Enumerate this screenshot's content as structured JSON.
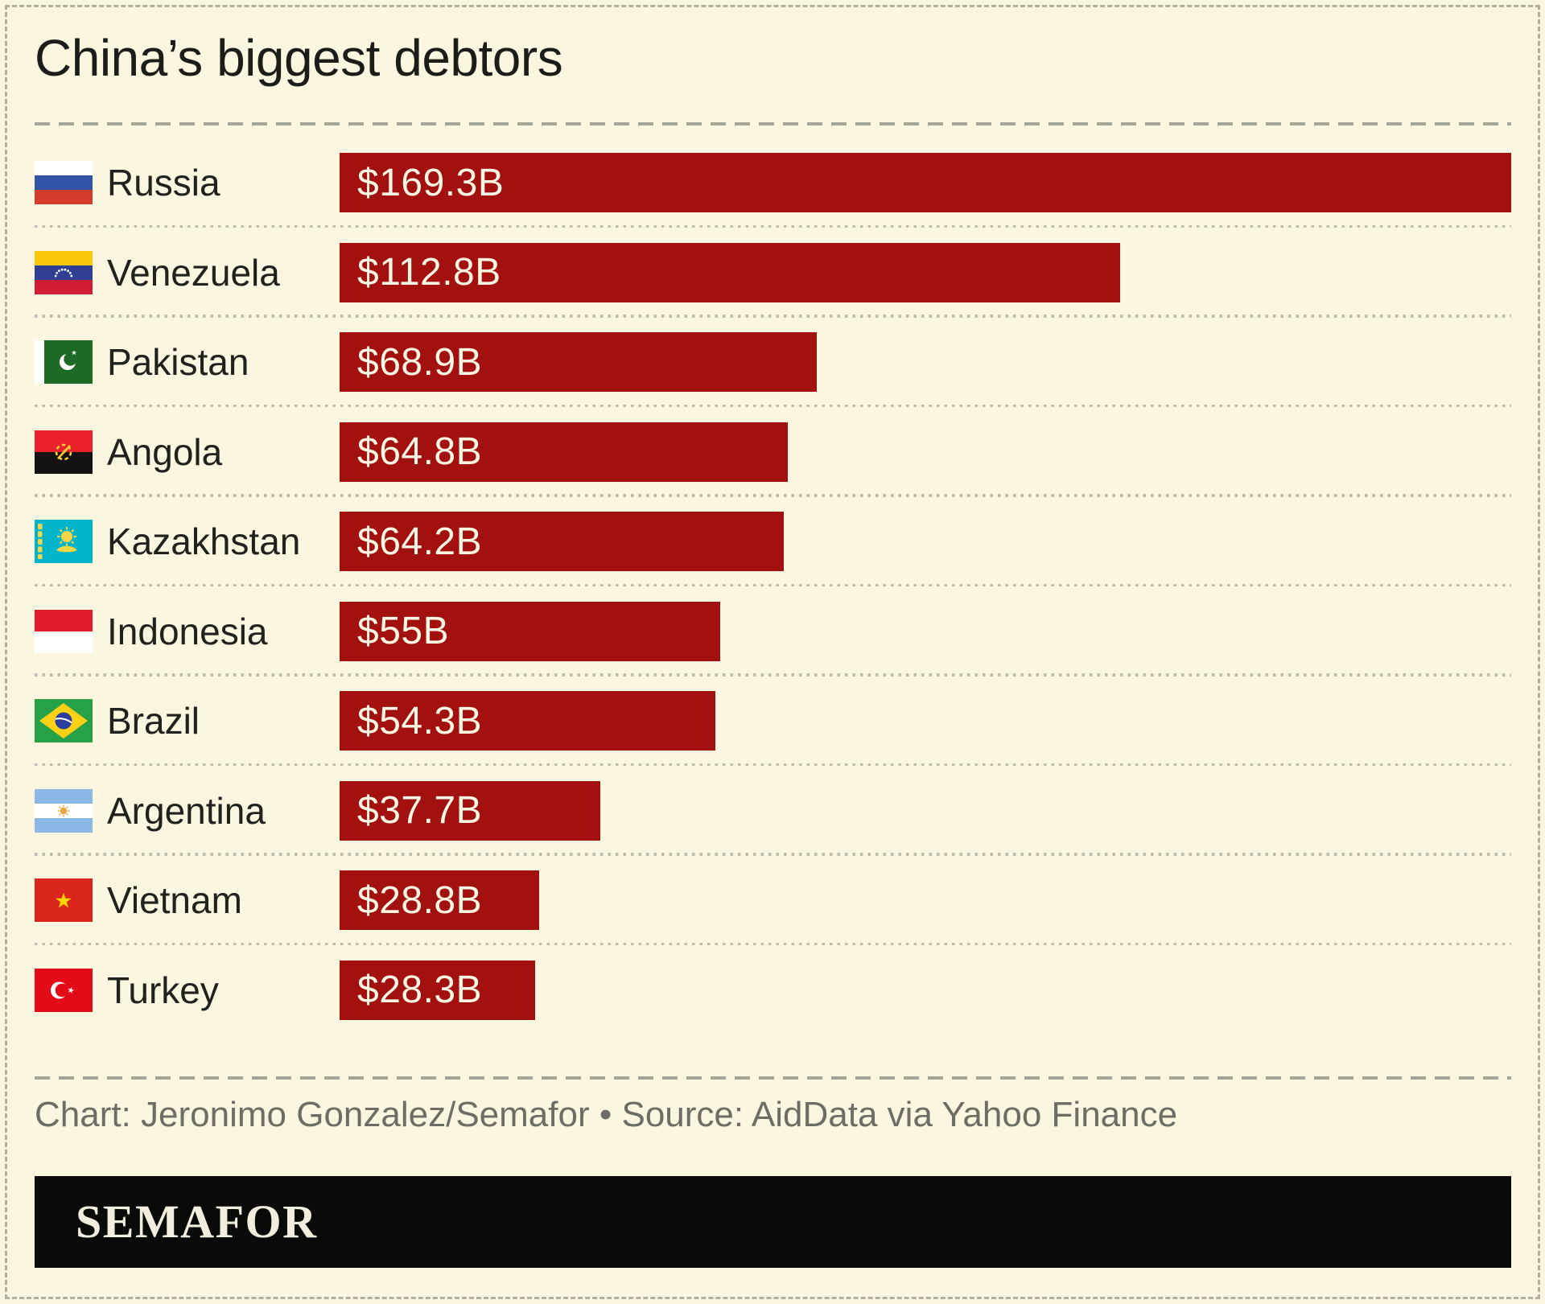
{
  "title": "China’s biggest debtors",
  "credit": "Chart: Jeronimo Gonzalez/Semafor • Source: AidData via Yahoo Finance",
  "logo_text": "SEMAFOR",
  "colors": {
    "background": "#faf6e0",
    "bar": "#a21010",
    "bar_label_text": "#fbf7e3",
    "title_text": "#1c1c19",
    "country_label_text": "#21211e",
    "credit_text": "#6d6d64",
    "separator_dash": "#a6a697",
    "separator_dot": "#bdbdaf",
    "logo_background": "#0a0a08",
    "logo_text_color": "#f2eedd"
  },
  "chart_data": {
    "type": "bar",
    "orientation": "horizontal",
    "title": "China’s biggest debtors",
    "categories": [
      "Russia",
      "Venezuela",
      "Pakistan",
      "Angola",
      "Kazakhstan",
      "Indonesia",
      "Brazil",
      "Argentina",
      "Vietnam",
      "Turkey"
    ],
    "values": [
      169.3,
      112.8,
      68.9,
      64.8,
      64.2,
      55,
      54.3,
      37.7,
      28.8,
      28.3
    ],
    "value_labels": [
      "$169.3B",
      "$112.8B",
      "$68.9B",
      "$64.8B",
      "$64.2B",
      "$55B",
      "$54.3B",
      "$37.7B",
      "$28.8B",
      "$28.3B"
    ],
    "xlabel": "",
    "ylabel": "",
    "xlim": [
      0,
      169.3
    ],
    "grid": false,
    "legend": false,
    "bar_color": "#a21010"
  },
  "rows": [
    {
      "country": "Russia",
      "value": 169.3,
      "value_label": "$169.3B",
      "flag_icon": "flag-russia-icon"
    },
    {
      "country": "Venezuela",
      "value": 112.8,
      "value_label": "$112.8B",
      "flag_icon": "flag-venezuela-icon"
    },
    {
      "country": "Pakistan",
      "value": 68.9,
      "value_label": "$68.9B",
      "flag_icon": "flag-pakistan-icon"
    },
    {
      "country": "Angola",
      "value": 64.8,
      "value_label": "$64.8B",
      "flag_icon": "flag-angola-icon"
    },
    {
      "country": "Kazakhstan",
      "value": 64.2,
      "value_label": "$64.2B",
      "flag_icon": "flag-kazakhstan-icon"
    },
    {
      "country": "Indonesia",
      "value": 55,
      "value_label": "$55B",
      "flag_icon": "flag-indonesia-icon"
    },
    {
      "country": "Brazil",
      "value": 54.3,
      "value_label": "$54.3B",
      "flag_icon": "flag-brazil-icon"
    },
    {
      "country": "Argentina",
      "value": 37.7,
      "value_label": "$37.7B",
      "flag_icon": "flag-argentina-icon"
    },
    {
      "country": "Vietnam",
      "value": 28.8,
      "value_label": "$28.8B",
      "flag_icon": "flag-vietnam-icon"
    },
    {
      "country": "Turkey",
      "value": 28.3,
      "value_label": "$28.3B",
      "flag_icon": "flag-turkey-icon"
    }
  ]
}
